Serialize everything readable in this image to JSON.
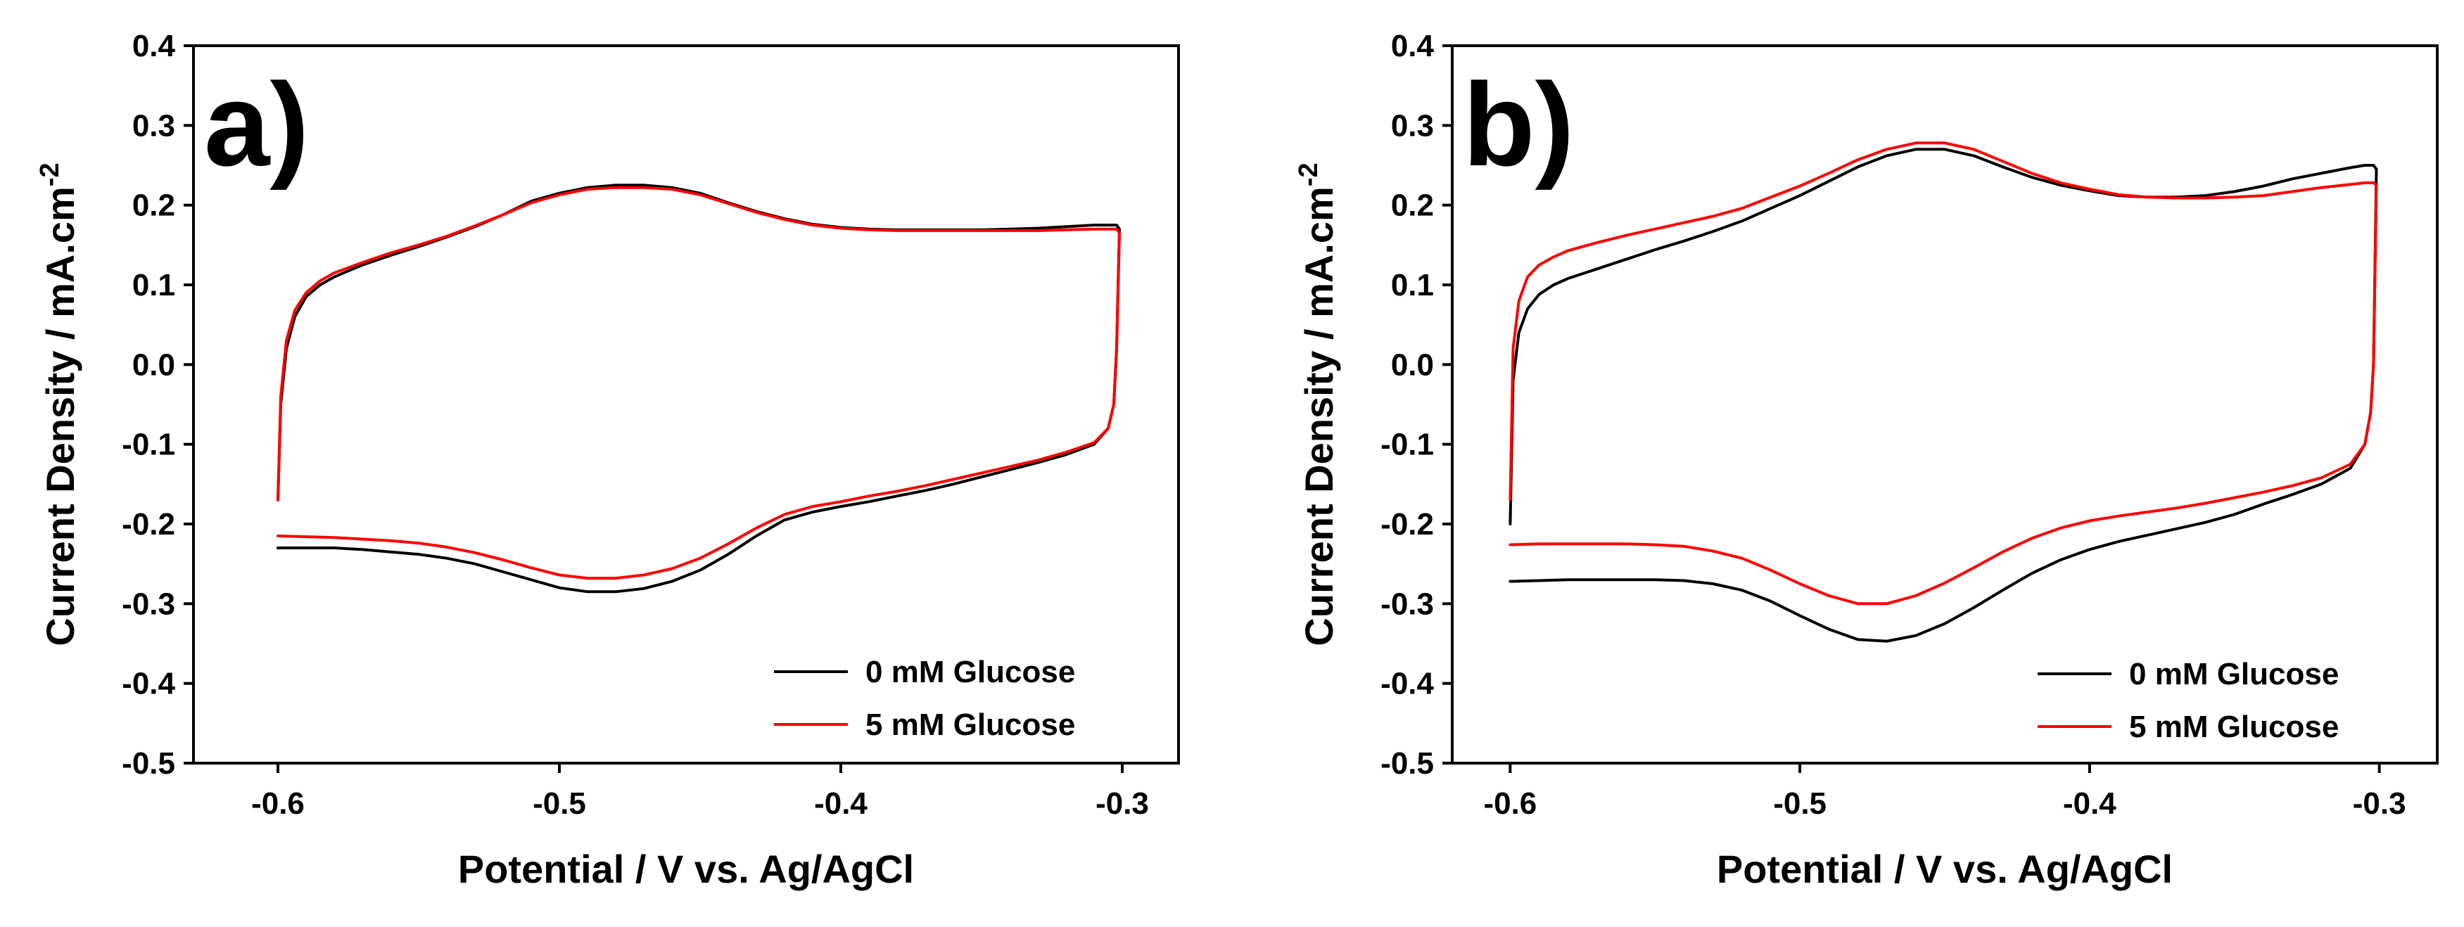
{
  "figure": {
    "background": "#ffffff"
  },
  "chart_data": [
    {
      "type": "line",
      "panel_label": "a)",
      "xlabel": "Potential / V vs. Ag/AgCl",
      "ylabel_main": "Current Density / mA.cm",
      "ylabel_sup": "-2",
      "xlim": [
        -0.63,
        -0.28
      ],
      "ylim": [
        -0.5,
        0.4
      ],
      "xticks": [
        -0.6,
        -0.5,
        -0.4,
        -0.3
      ],
      "xtick_labels": [
        "-0.6",
        "-0.5",
        "-0.4",
        "-0.3"
      ],
      "yticks": [
        0.4,
        0.3,
        0.2,
        0.1,
        0.0,
        -0.1,
        -0.2,
        -0.3,
        -0.4,
        -0.5
      ],
      "ytick_labels": [
        "0.4",
        "0.3",
        "0.2",
        "0.1",
        "0.0",
        "-0.1",
        "-0.2",
        "-0.3",
        "-0.4",
        "-0.5"
      ],
      "grid": false,
      "legend_position": "bottom-right",
      "series": [
        {
          "name": "0 mM Glucose",
          "color": "#000000",
          "x": [
            -0.6,
            -0.599,
            -0.597,
            -0.594,
            -0.59,
            -0.585,
            -0.58,
            -0.57,
            -0.56,
            -0.55,
            -0.54,
            -0.53,
            -0.52,
            -0.51,
            -0.5,
            -0.49,
            -0.48,
            -0.47,
            -0.46,
            -0.45,
            -0.44,
            -0.43,
            -0.42,
            -0.41,
            -0.4,
            -0.39,
            -0.38,
            -0.37,
            -0.36,
            -0.35,
            -0.34,
            -0.33,
            -0.32,
            -0.31,
            -0.305,
            -0.302,
            -0.301,
            -0.302,
            -0.303,
            -0.305,
            -0.31,
            -0.32,
            -0.33,
            -0.34,
            -0.35,
            -0.36,
            -0.37,
            -0.38,
            -0.39,
            -0.4,
            -0.41,
            -0.42,
            -0.43,
            -0.44,
            -0.45,
            -0.46,
            -0.47,
            -0.48,
            -0.49,
            -0.5,
            -0.51,
            -0.52,
            -0.53,
            -0.54,
            -0.55,
            -0.56,
            -0.57,
            -0.58,
            -0.59,
            -0.6
          ],
          "y": [
            -0.17,
            -0.05,
            0.02,
            0.06,
            0.085,
            0.1,
            0.11,
            0.125,
            0.137,
            0.148,
            0.16,
            0.173,
            0.188,
            0.205,
            0.215,
            0.222,
            0.225,
            0.225,
            0.222,
            0.215,
            0.203,
            0.192,
            0.183,
            0.176,
            0.172,
            0.17,
            0.169,
            0.169,
            0.169,
            0.169,
            0.17,
            0.171,
            0.173,
            0.175,
            0.175,
            0.175,
            0.17,
            0.02,
            -0.05,
            -0.08,
            -0.1,
            -0.113,
            -0.123,
            -0.132,
            -0.141,
            -0.15,
            -0.158,
            -0.165,
            -0.172,
            -0.178,
            -0.185,
            -0.195,
            -0.215,
            -0.238,
            -0.258,
            -0.272,
            -0.281,
            -0.285,
            -0.285,
            -0.28,
            -0.27,
            -0.26,
            -0.25,
            -0.243,
            -0.238,
            -0.235,
            -0.232,
            -0.23,
            -0.23,
            -0.23
          ]
        },
        {
          "name": "5 mM Glucose",
          "color": "#ff0000",
          "x": [
            -0.6,
            -0.599,
            -0.597,
            -0.594,
            -0.59,
            -0.585,
            -0.58,
            -0.57,
            -0.56,
            -0.55,
            -0.54,
            -0.53,
            -0.52,
            -0.51,
            -0.5,
            -0.49,
            -0.48,
            -0.47,
            -0.46,
            -0.45,
            -0.44,
            -0.43,
            -0.42,
            -0.41,
            -0.4,
            -0.39,
            -0.38,
            -0.37,
            -0.36,
            -0.35,
            -0.34,
            -0.33,
            -0.32,
            -0.31,
            -0.305,
            -0.302,
            -0.301,
            -0.302,
            -0.303,
            -0.305,
            -0.31,
            -0.32,
            -0.33,
            -0.34,
            -0.35,
            -0.36,
            -0.37,
            -0.38,
            -0.39,
            -0.4,
            -0.41,
            -0.42,
            -0.43,
            -0.44,
            -0.45,
            -0.46,
            -0.47,
            -0.48,
            -0.49,
            -0.5,
            -0.51,
            -0.52,
            -0.53,
            -0.54,
            -0.55,
            -0.56,
            -0.57,
            -0.58,
            -0.59,
            -0.6
          ],
          "y": [
            -0.17,
            -0.04,
            0.03,
            0.068,
            0.09,
            0.105,
            0.115,
            0.128,
            0.14,
            0.15,
            0.161,
            0.174,
            0.188,
            0.203,
            0.213,
            0.22,
            0.222,
            0.222,
            0.22,
            0.213,
            0.202,
            0.191,
            0.182,
            0.175,
            0.171,
            0.169,
            0.168,
            0.168,
            0.168,
            0.168,
            0.168,
            0.168,
            0.169,
            0.17,
            0.17,
            0.17,
            0.165,
            0.02,
            -0.05,
            -0.08,
            -0.098,
            -0.11,
            -0.12,
            -0.128,
            -0.136,
            -0.144,
            -0.152,
            -0.159,
            -0.165,
            -0.172,
            -0.178,
            -0.188,
            -0.205,
            -0.225,
            -0.243,
            -0.256,
            -0.264,
            -0.268,
            -0.268,
            -0.264,
            -0.255,
            -0.245,
            -0.236,
            -0.229,
            -0.224,
            -0.221,
            -0.219,
            -0.217,
            -0.216,
            -0.215
          ]
        }
      ]
    },
    {
      "type": "line",
      "panel_label": "b)",
      "xlabel": "Potential / V vs. Ag/AgCl",
      "ylabel_main": "Current Density / mA.cm",
      "ylabel_sup": "-2",
      "xlim": [
        -0.62,
        -0.28
      ],
      "ylim": [
        -0.5,
        0.4
      ],
      "xticks": [
        -0.6,
        -0.5,
        -0.4,
        -0.3
      ],
      "xtick_labels": [
        "-0.6",
        "-0.5",
        "-0.4",
        "-0.3"
      ],
      "yticks": [
        0.4,
        0.3,
        0.2,
        0.1,
        0.0,
        -0.1,
        -0.2,
        -0.3,
        -0.4,
        -0.5
      ],
      "ytick_labels": [
        "0.4",
        "0.3",
        "0.2",
        "0.1",
        "0.0",
        "-0.1",
        "-0.2",
        "-0.3",
        "-0.4",
        "-0.5"
      ],
      "grid": false,
      "legend_position": "bottom-right",
      "series": [
        {
          "name": "0 mM Glucose",
          "color": "#000000",
          "x": [
            -0.6,
            -0.599,
            -0.597,
            -0.594,
            -0.59,
            -0.585,
            -0.58,
            -0.57,
            -0.56,
            -0.55,
            -0.54,
            -0.53,
            -0.52,
            -0.51,
            -0.5,
            -0.49,
            -0.48,
            -0.47,
            -0.46,
            -0.45,
            -0.44,
            -0.43,
            -0.42,
            -0.41,
            -0.4,
            -0.39,
            -0.38,
            -0.37,
            -0.36,
            -0.35,
            -0.34,
            -0.33,
            -0.32,
            -0.31,
            -0.305,
            -0.302,
            -0.301,
            -0.302,
            -0.303,
            -0.305,
            -0.31,
            -0.32,
            -0.33,
            -0.34,
            -0.35,
            -0.36,
            -0.37,
            -0.38,
            -0.39,
            -0.4,
            -0.41,
            -0.42,
            -0.43,
            -0.44,
            -0.45,
            -0.46,
            -0.47,
            -0.48,
            -0.49,
            -0.5,
            -0.51,
            -0.52,
            -0.53,
            -0.54,
            -0.55,
            -0.56,
            -0.57,
            -0.58,
            -0.59,
            -0.6
          ],
          "y": [
            -0.2,
            -0.02,
            0.04,
            0.07,
            0.088,
            0.1,
            0.108,
            0.12,
            0.132,
            0.144,
            0.155,
            0.167,
            0.18,
            0.196,
            0.212,
            0.23,
            0.248,
            0.262,
            0.27,
            0.27,
            0.262,
            0.248,
            0.235,
            0.225,
            0.218,
            0.212,
            0.21,
            0.21,
            0.212,
            0.217,
            0.224,
            0.233,
            0.24,
            0.247,
            0.25,
            0.25,
            0.245,
            0.0,
            -0.06,
            -0.1,
            -0.13,
            -0.15,
            -0.163,
            -0.175,
            -0.188,
            -0.198,
            -0.206,
            -0.214,
            -0.222,
            -0.232,
            -0.245,
            -0.262,
            -0.283,
            -0.305,
            -0.325,
            -0.34,
            -0.347,
            -0.345,
            -0.332,
            -0.315,
            -0.297,
            -0.283,
            -0.275,
            -0.271,
            -0.27,
            -0.27,
            -0.27,
            -0.27,
            -0.271,
            -0.272
          ]
        },
        {
          "name": "5 mM Glucose",
          "color": "#ff0000",
          "x": [
            -0.6,
            -0.599,
            -0.597,
            -0.594,
            -0.59,
            -0.585,
            -0.58,
            -0.57,
            -0.56,
            -0.55,
            -0.54,
            -0.53,
            -0.52,
            -0.51,
            -0.5,
            -0.49,
            -0.48,
            -0.47,
            -0.46,
            -0.45,
            -0.44,
            -0.43,
            -0.42,
            -0.41,
            -0.4,
            -0.39,
            -0.38,
            -0.37,
            -0.36,
            -0.35,
            -0.34,
            -0.33,
            -0.32,
            -0.31,
            -0.305,
            -0.302,
            -0.301,
            -0.302,
            -0.303,
            -0.305,
            -0.31,
            -0.32,
            -0.33,
            -0.34,
            -0.35,
            -0.36,
            -0.37,
            -0.38,
            -0.39,
            -0.4,
            -0.41,
            -0.42,
            -0.43,
            -0.44,
            -0.45,
            -0.46,
            -0.47,
            -0.48,
            -0.49,
            -0.5,
            -0.51,
            -0.52,
            -0.53,
            -0.54,
            -0.55,
            -0.56,
            -0.57,
            -0.58,
            -0.59,
            -0.6
          ],
          "y": [
            -0.17,
            0.02,
            0.08,
            0.11,
            0.125,
            0.135,
            0.143,
            0.153,
            0.162,
            0.17,
            0.178,
            0.186,
            0.196,
            0.21,
            0.224,
            0.24,
            0.257,
            0.27,
            0.278,
            0.278,
            0.27,
            0.255,
            0.24,
            0.228,
            0.22,
            0.213,
            0.21,
            0.209,
            0.209,
            0.21,
            0.212,
            0.217,
            0.222,
            0.226,
            0.228,
            0.228,
            0.225,
            0.0,
            -0.06,
            -0.1,
            -0.125,
            -0.142,
            -0.152,
            -0.16,
            -0.167,
            -0.174,
            -0.18,
            -0.185,
            -0.19,
            -0.196,
            -0.205,
            -0.218,
            -0.235,
            -0.255,
            -0.274,
            -0.29,
            -0.3,
            -0.3,
            -0.29,
            -0.275,
            -0.258,
            -0.243,
            -0.234,
            -0.228,
            -0.226,
            -0.225,
            -0.225,
            -0.225,
            -0.225,
            -0.226
          ]
        }
      ]
    }
  ]
}
